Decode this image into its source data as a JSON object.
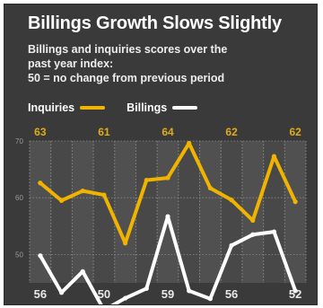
{
  "header": {
    "title": "Billings Growth Slows Slightly",
    "subtitle_lines": [
      "Billings and inquiries scores over the",
      "past year index:",
      "50 = no change from previous period"
    ]
  },
  "legend": {
    "inquiries": "Inquiries",
    "billings": "Billings"
  },
  "colors": {
    "background": "#3a3a3a",
    "plot_area": "#505050",
    "plot_area_alt": "#3f3f3f",
    "inquiries": "#f0b400",
    "billings": "#ffffff",
    "top_labels": "#e0ab17",
    "bottom_labels": "#e8e8e8",
    "tick_labels": "#9a9a9a",
    "gridlines": "#8a8a8a"
  },
  "chart_data": {
    "type": "line",
    "x": [
      1,
      2,
      3,
      4,
      5,
      6,
      7,
      8,
      9,
      10,
      11,
      12,
      13
    ],
    "ylim": [
      45,
      70
    ],
    "y_ticks": [
      "50",
      "60",
      "70"
    ],
    "grid": true,
    "legend_position": "top",
    "series": [
      {
        "name": "Inquiries",
        "values": [
          62.6,
          59.5,
          61.2,
          60.5,
          52.0,
          63.1,
          63.5,
          69.6,
          61.7,
          59.6,
          56.0,
          67.3,
          59.3
        ]
      },
      {
        "name": "Billings",
        "values": [
          49.8,
          43.3,
          47.0,
          40.2,
          42.3,
          44.0,
          56.7,
          43.6,
          42.2,
          51.6,
          53.5,
          54.0,
          43.6
        ]
      }
    ],
    "top_labels": [
      "63",
      "61",
      "64",
      "62",
      "62"
    ],
    "bottom_labels": [
      "56",
      "50",
      "59",
      "56",
      "52"
    ]
  }
}
